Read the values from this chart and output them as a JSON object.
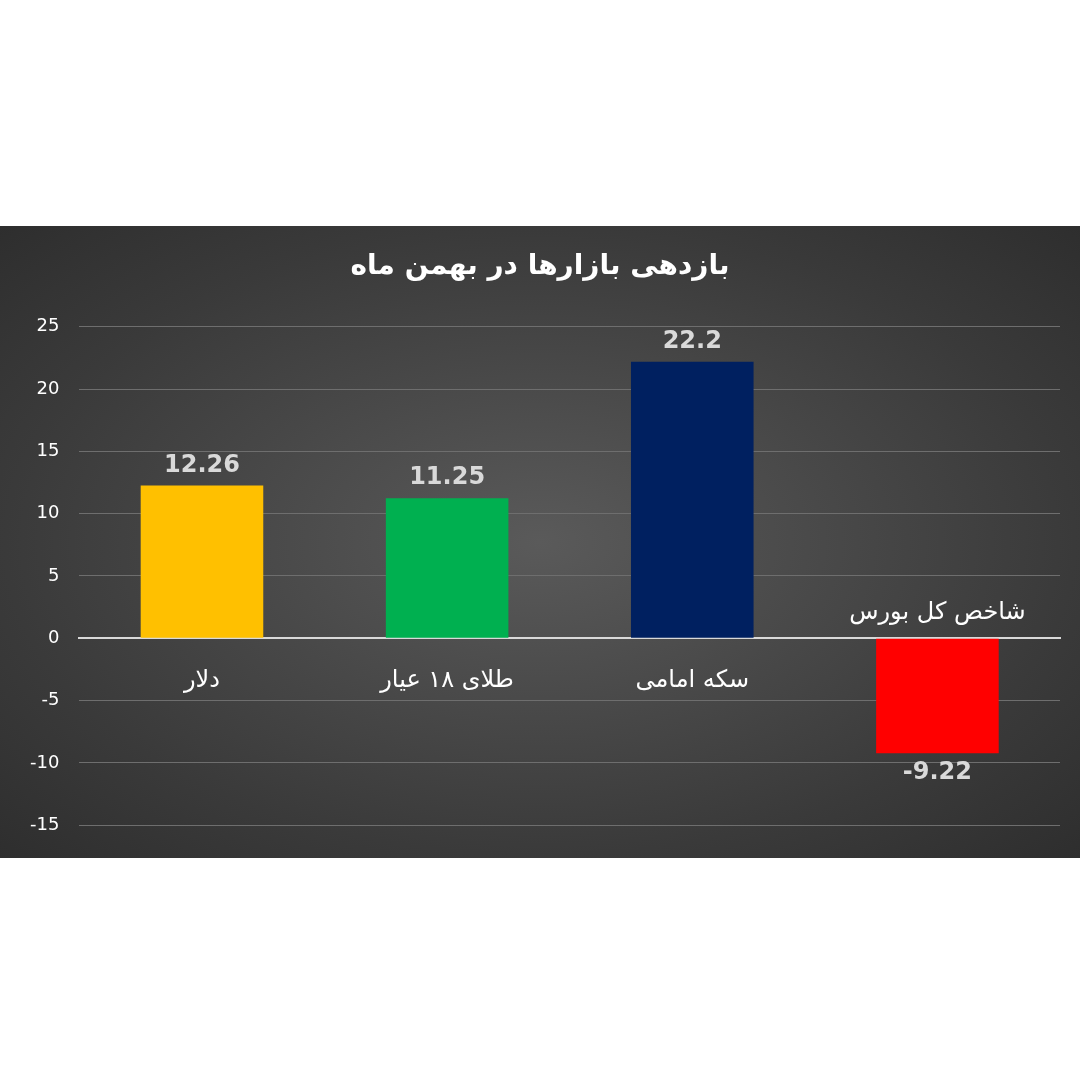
{
  "chart_data": {
    "type": "bar",
    "title": "بازدهی بازارها در بهمن ماه",
    "categories": [
      "دلار",
      "طلای ۱۸ عیار",
      "سکه امامی",
      "شاخص کل بورس"
    ],
    "values": [
      12.26,
      11.25,
      22.2,
      -9.22
    ],
    "colors": [
      "#ffc000",
      "#00b050",
      "#002060",
      "#ff0000"
    ],
    "ylim": [
      -15,
      25
    ],
    "yticks": [
      -15,
      -10,
      -5,
      0,
      5,
      10,
      15,
      20,
      25
    ],
    "grid": "y",
    "data_labels": true
  }
}
